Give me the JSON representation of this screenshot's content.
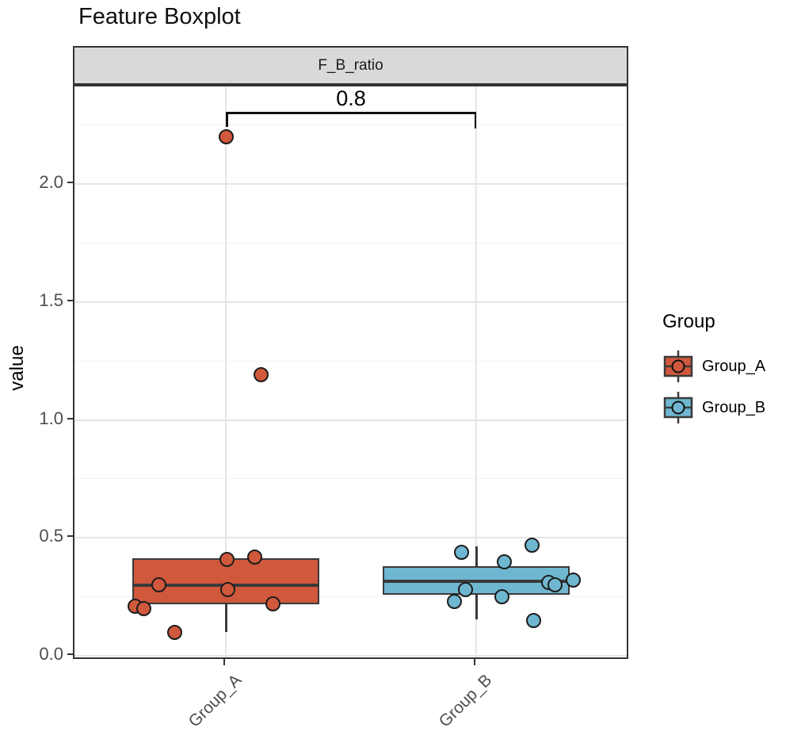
{
  "title": "Feature Boxplot",
  "legend": {
    "title": "Group",
    "items": [
      {
        "label": "Group_A",
        "color": "#d0583c"
      },
      {
        "label": "Group_B",
        "color": "#6fb7d1"
      }
    ]
  },
  "colors": {
    "major_grid": "#e6e6e6",
    "minor_grid": "#f2f2f2",
    "box_stroke": "#3a3a3a",
    "point_stroke": "#1c1c1c",
    "bracket": "#111111",
    "strip_fill": "#d9d9d9",
    "panel_border": "#333333",
    "axis_text": "#4d4d4d"
  },
  "chart_data": {
    "type": "boxplot",
    "title": "Feature Boxplot",
    "facet": "F_B_ratio",
    "xlabel": "",
    "ylabel": "value",
    "ylim": [
      -0.01,
      2.42
    ],
    "grid": true,
    "legend_position": "right",
    "yticks": [
      {
        "v": 0.0,
        "label": "0.0"
      },
      {
        "v": 0.5,
        "label": "0.5"
      },
      {
        "v": 1.0,
        "label": "1.0"
      },
      {
        "v": 1.5,
        "label": "1.5"
      },
      {
        "v": 2.0,
        "label": "2.0"
      }
    ],
    "minor_yticks": [
      0.25,
      0.75,
      1.25,
      1.75,
      2.25
    ],
    "categories": [
      "Group_A",
      "Group_B"
    ],
    "groups": [
      {
        "name": "Group_A",
        "color": "#d0583c",
        "box": {
          "q1": 0.22,
          "median": 0.3,
          "q3": 0.415,
          "whisker_low": 0.1,
          "whisker_high": 0.415
        },
        "points": [
          {
            "v": 0.21,
            "dx": -115
          },
          {
            "v": 0.2,
            "dx": -104
          },
          {
            "v": 0.3,
            "dx": -85
          },
          {
            "v": 0.1,
            "dx": -65
          },
          {
            "v": 0.41,
            "dx": 1
          },
          {
            "v": 0.28,
            "dx": 2
          },
          {
            "v": 0.42,
            "dx": 36
          },
          {
            "v": 0.22,
            "dx": 59
          },
          {
            "v": 1.19,
            "dx": 44
          },
          {
            "v": 2.2,
            "dx": 0
          }
        ]
      },
      {
        "name": "Group_B",
        "color": "#6fb7d1",
        "box": {
          "q1": 0.26,
          "median": 0.315,
          "q3": 0.38,
          "whisker_low": 0.155,
          "whisker_high": 0.465
        },
        "points": [
          {
            "v": 0.44,
            "dx": -19
          },
          {
            "v": 0.4,
            "dx": 35
          },
          {
            "v": 0.47,
            "dx": 70
          },
          {
            "v": 0.28,
            "dx": -14
          },
          {
            "v": 0.23,
            "dx": -28
          },
          {
            "v": 0.25,
            "dx": 32
          },
          {
            "v": 0.31,
            "dx": 91
          },
          {
            "v": 0.3,
            "dx": 99
          },
          {
            "v": 0.32,
            "dx": 122
          },
          {
            "v": 0.15,
            "dx": 72
          }
        ]
      }
    ],
    "significance": {
      "label": "0.8",
      "from": "Group_A",
      "to": "Group_B",
      "y": 2.305
    }
  }
}
